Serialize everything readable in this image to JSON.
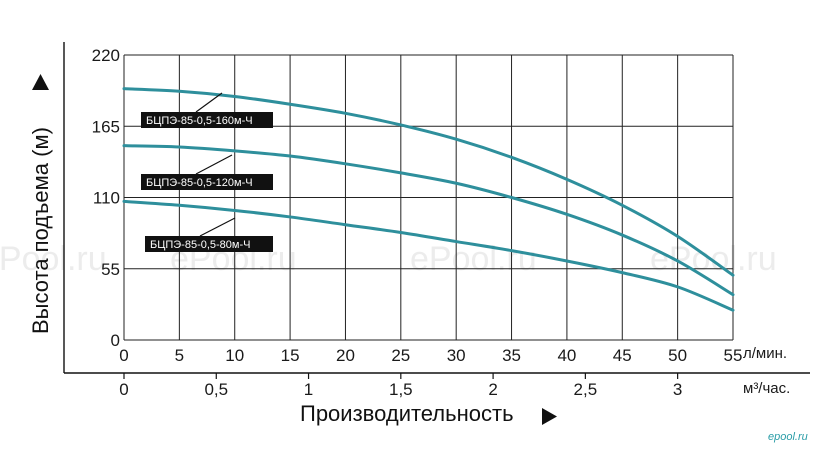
{
  "colors": {
    "curve": "#2e8f9c",
    "grid": "#222222",
    "label_bg": "#111111",
    "label_text": "#ffffff",
    "brand": "#2a9da7",
    "watermark": "#ececec"
  },
  "watermark": [
    "ePool.ru",
    "ePool.ru",
    "ePool.ru"
  ],
  "brand": "epool.ru",
  "chart_data": {
    "type": "line",
    "ylabel": "Высота подъема (м)",
    "xlabel": "Производительность",
    "x_unit_primary": "л/мин.",
    "x_unit_secondary": "м³/час.",
    "ylim": [
      0,
      220
    ],
    "xlim": [
      0,
      55
    ],
    "y_ticks": [
      "0",
      "55",
      "110",
      "165",
      "220"
    ],
    "x_ticks": [
      "0",
      "5",
      "10",
      "15",
      "20",
      "25",
      "30",
      "35",
      "40",
      "45",
      "50",
      "55"
    ],
    "x2_ticks": [
      {
        "label": "0",
        "value": 0
      },
      {
        "label": "0,5",
        "value": 0.5
      },
      {
        "label": "1",
        "value": 1
      },
      {
        "label": "1,5",
        "value": 1.5
      },
      {
        "label": "2",
        "value": 2
      },
      {
        "label": "2,5",
        "value": 2.5
      },
      {
        "label": "3",
        "value": 3
      }
    ],
    "grid": true,
    "series": [
      {
        "name": "БЦПЭ-85-0,5-160м-Ч",
        "x": [
          0,
          5,
          10,
          15,
          20,
          25,
          30,
          35,
          40,
          45,
          50,
          55
        ],
        "y": [
          194,
          192,
          188,
          182,
          175,
          166,
          155,
          141,
          124,
          104,
          80,
          50
        ]
      },
      {
        "name": "БЦПЭ-85-0,5-120м-Ч",
        "x": [
          0,
          5,
          10,
          15,
          20,
          25,
          30,
          35,
          40,
          45,
          50,
          55
        ],
        "y": [
          150,
          149,
          146,
          142,
          136,
          129,
          121,
          110,
          97,
          81,
          61,
          35
        ]
      },
      {
        "name": "БЦПЭ-85-0,5-80м-Ч",
        "x": [
          0,
          5,
          10,
          15,
          20,
          25,
          30,
          35,
          40,
          45,
          50,
          55
        ],
        "y": [
          107,
          104,
          100,
          95,
          89,
          83,
          76,
          69,
          61,
          52,
          41,
          23
        ]
      }
    ]
  }
}
